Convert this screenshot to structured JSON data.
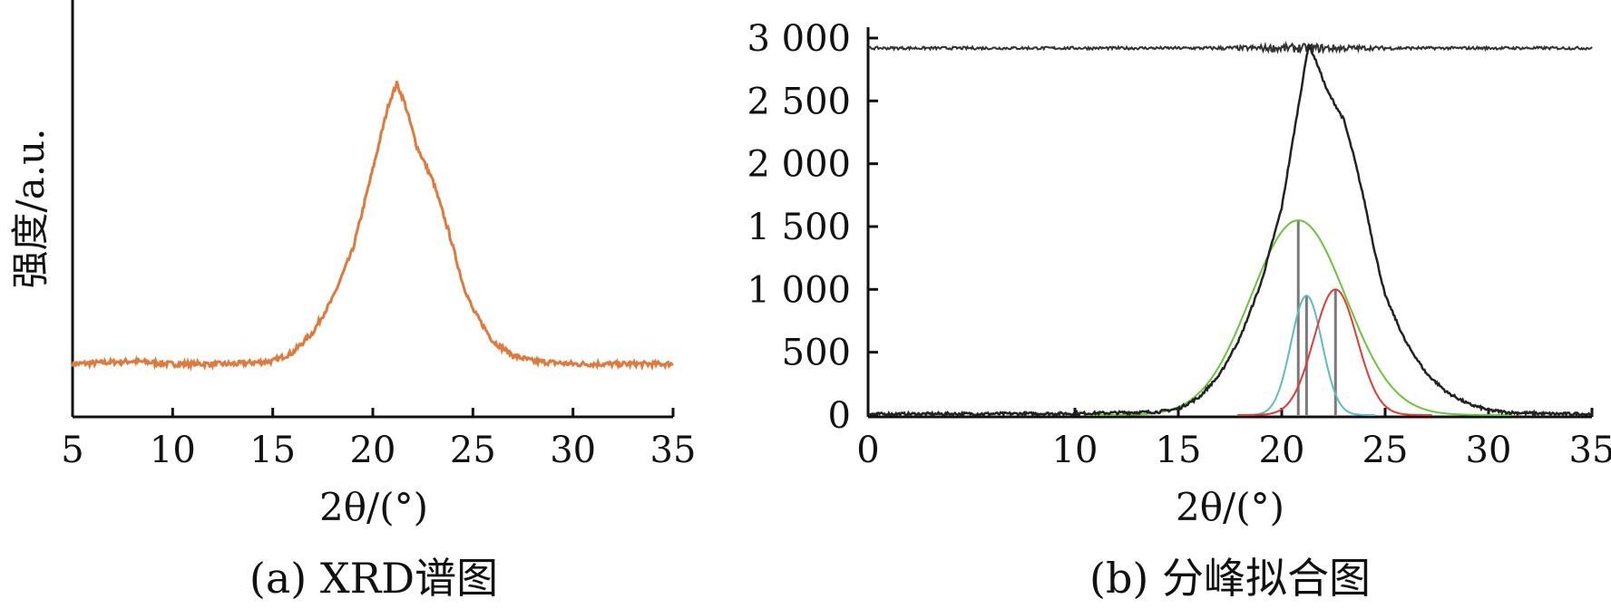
{
  "panels": {
    "a": {
      "caption": "(a) XRD谱图"
    },
    "b": {
      "caption": "(b) 分峰拟合图"
    }
  },
  "chart_data": [
    {
      "type": "line",
      "xlabel": "2θ/(°)",
      "ylabel": "强度/a.u.",
      "xlim": [
        5,
        35
      ],
      "xticks": [
        5,
        10,
        15,
        20,
        25,
        30,
        35
      ],
      "y_ticks_shown": false,
      "series": [
        {
          "color": "#e07a3c",
          "points": [
            [
              5,
              0.02
            ],
            [
              8,
              0.03
            ],
            [
              10,
              0.02
            ],
            [
              13,
              0.02
            ],
            [
              15,
              0.03
            ],
            [
              16,
              0.06
            ],
            [
              17,
              0.13
            ],
            [
              18,
              0.25
            ],
            [
              19,
              0.42
            ],
            [
              20,
              0.7
            ],
            [
              20.8,
              0.93
            ],
            [
              21.2,
              1.0
            ],
            [
              21.6,
              0.93
            ],
            [
              22.2,
              0.78
            ],
            [
              23,
              0.66
            ],
            [
              23.8,
              0.48
            ],
            [
              24.5,
              0.3
            ],
            [
              25,
              0.21
            ],
            [
              26,
              0.1
            ],
            [
              27,
              0.05
            ],
            [
              28,
              0.03
            ],
            [
              30,
              0.02
            ],
            [
              32,
              0.02
            ],
            [
              35,
              0.02
            ]
          ]
        }
      ]
    },
    {
      "type": "line",
      "xlabel": "2θ/(°)",
      "xlim": [
        0,
        35
      ],
      "ylim": [
        0,
        3000
      ],
      "xticks": [
        0,
        10,
        15,
        20,
        25,
        30,
        35
      ],
      "yticks": [
        "0",
        "500",
        "1 000",
        "1 500",
        "2 000",
        "2 500",
        "3 000"
      ],
      "yticks_values": [
        0,
        500,
        1000,
        1500,
        2000,
        2500,
        3000
      ],
      "series": [
        {
          "role": "measured",
          "color": "#222222",
          "points": [
            [
              0,
              8
            ],
            [
              5,
              10
            ],
            [
              10,
              12
            ],
            [
              14,
              25
            ],
            [
              15,
              50
            ],
            [
              16,
              140
            ],
            [
              17,
              320
            ],
            [
              18,
              620
            ],
            [
              19,
              1050
            ],
            [
              20,
              1650
            ],
            [
              20.5,
              2150
            ],
            [
              21,
              2650
            ],
            [
              21.3,
              2950
            ],
            [
              21.7,
              2800
            ],
            [
              22.2,
              2580
            ],
            [
              23,
              2350
            ],
            [
              23.5,
              2050
            ],
            [
              24,
              1700
            ],
            [
              24.5,
              1300
            ],
            [
              25,
              950
            ],
            [
              26,
              580
            ],
            [
              27,
              330
            ],
            [
              28,
              180
            ],
            [
              29,
              90
            ],
            [
              30,
              40
            ],
            [
              31,
              20
            ],
            [
              33,
              10
            ],
            [
              35,
              8
            ]
          ]
        },
        {
          "role": "fit-peak",
          "color": "#6ac43c",
          "center": 20.8,
          "height": 1550,
          "sigma": 2.3
        },
        {
          "role": "fit-peak",
          "color": "#5bbcc4",
          "center": 21.2,
          "height": 950,
          "sigma": 0.75
        },
        {
          "role": "fit-peak",
          "color": "#e53935",
          "center": 22.6,
          "height": 1000,
          "sigma": 1.05
        },
        {
          "role": "residual",
          "color": "#333333",
          "baseline": 2920,
          "noise": 22
        }
      ],
      "peak_markers": [
        20.8,
        21.2,
        22.6
      ]
    }
  ]
}
